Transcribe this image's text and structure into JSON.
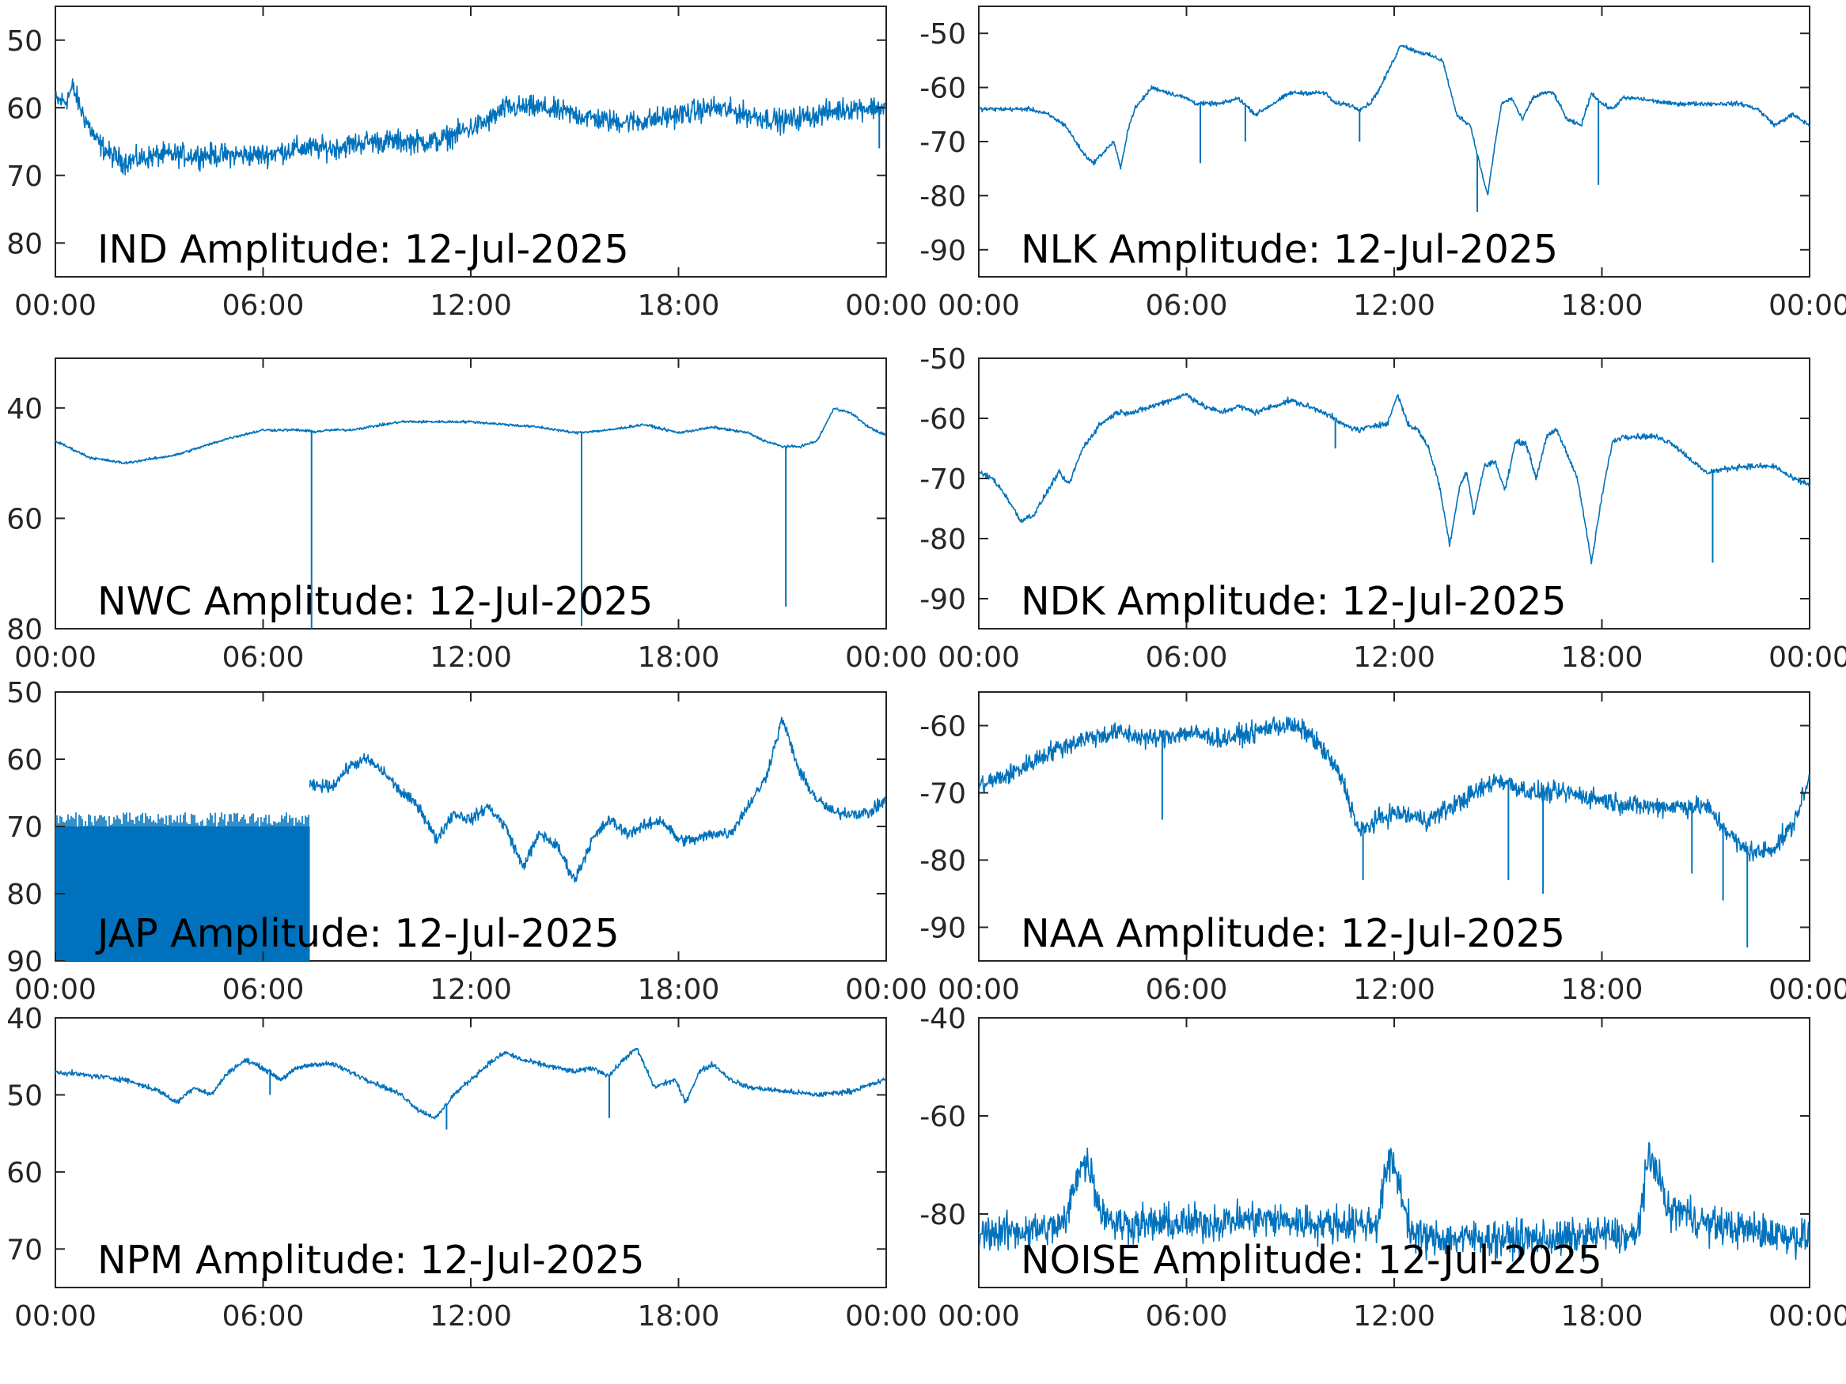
{
  "figure": {
    "x_tick_labels": [
      "00:00",
      "06:00",
      "12:00",
      "18:00",
      "00:00"
    ],
    "trace_color": "#0072BD"
  },
  "chart_data": [
    {
      "type": "line",
      "title": "IND Amplitude: 12-Jul-2025",
      "xlabel": "",
      "ylabel": "",
      "xlim": [
        0,
        24
      ],
      "ylim": [
        -85,
        -45
      ],
      "y_ticks": [
        -50,
        -60,
        -70,
        -80
      ],
      "y_tick_labels": [
        "50",
        "60",
        "70",
        "80"
      ],
      "noise": 2.5,
      "series": [
        {
          "x": [
            0,
            0.3,
            0.5,
            0.8,
            1.2,
            1.6,
            2,
            3,
            4,
            5,
            6,
            7,
            8,
            9,
            10,
            11,
            12,
            12.5,
            13,
            13.5,
            14,
            15,
            16,
            17,
            18,
            19,
            20,
            21,
            22,
            23,
            24
          ],
          "y": [
            -59,
            -59,
            -57,
            -61,
            -65,
            -67,
            -68,
            -67,
            -67,
            -67,
            -67,
            -66,
            -66,
            -65,
            -65,
            -65,
            -63,
            -62,
            -60,
            -60,
            -60,
            -61,
            -62,
            -62,
            -61,
            -60,
            -61,
            -62,
            -61,
            -60,
            -60
          ]
        }
      ],
      "spikes": [
        {
          "x": 23.8,
          "y": -66
        }
      ]
    },
    {
      "type": "line",
      "title": "NLK Amplitude: 12-Jul-2025",
      "xlabel": "",
      "ylabel": "",
      "xlim": [
        0,
        24
      ],
      "ylim": [
        -95,
        -45
      ],
      "y_ticks": [
        -50,
        -60,
        -70,
        -80,
        -90
      ],
      "y_tick_labels": [
        "-50",
        "-60",
        "-70",
        "-80",
        "-90"
      ],
      "noise": 0.6,
      "series": [
        {
          "x": [
            0,
            1,
            1.5,
            2,
            2.5,
            3,
            3.3,
            3.6,
            3.9,
            4.1,
            4.3,
            4.5,
            5,
            5.5,
            6,
            6.3,
            6.6,
            7,
            7.5,
            8,
            8.5,
            9,
            9.5,
            10,
            10.3,
            10.6,
            11,
            11.3,
            11.6,
            11.9,
            12.2,
            12.5,
            13,
            13.4,
            13.8,
            14.2,
            14.5,
            14.7,
            14.9,
            15.1,
            15.4,
            15.7,
            16,
            16.3,
            16.6,
            17,
            17.4,
            17.7,
            18,
            18.3,
            18.6,
            19,
            20,
            21,
            22,
            22.5,
            23,
            23.5,
            24
          ],
          "y": [
            -64,
            -64,
            -64,
            -65,
            -67,
            -72,
            -74,
            -72,
            -70,
            -75,
            -68,
            -64,
            -60,
            -61,
            -62,
            -63,
            -63,
            -63,
            -62,
            -65,
            -63,
            -61,
            -61,
            -61,
            -63,
            -63,
            -64,
            -63,
            -60,
            -56,
            -52,
            -53,
            -54,
            -55,
            -65,
            -67,
            -75,
            -80,
            -71,
            -63,
            -62,
            -66,
            -62,
            -61,
            -61,
            -66,
            -67,
            -61,
            -63,
            -64,
            -62,
            -62,
            -63,
            -63,
            -63,
            -64,
            -67,
            -65,
            -67
          ]
        }
      ],
      "spikes": [
        {
          "x": 6.4,
          "y": -74
        },
        {
          "x": 7.7,
          "y": -70
        },
        {
          "x": 11.0,
          "y": -70
        },
        {
          "x": 14.4,
          "y": -83
        },
        {
          "x": 17.9,
          "y": -78
        }
      ]
    },
    {
      "type": "line",
      "title": "NWC Amplitude: 12-Jul-2025",
      "xlabel": "",
      "ylabel": "",
      "xlim": [
        0,
        24
      ],
      "ylim": [
        -80,
        -31
      ],
      "y_ticks": [
        -40,
        -60,
        -80
      ],
      "y_tick_labels": [
        "40",
        "60",
        "80"
      ],
      "noise": 0.35,
      "series": [
        {
          "x": [
            0,
            0.5,
            1,
            1.5,
            2,
            3,
            3.5,
            4,
            5,
            6,
            7,
            7.5,
            8,
            8.5,
            9,
            10,
            11,
            12,
            13,
            14,
            15,
            16,
            17,
            18,
            19,
            20,
            20.5,
            21,
            21.5,
            22,
            22.5,
            23,
            23.5,
            24
          ],
          "y": [
            -46,
            -47.5,
            -49,
            -49.5,
            -50,
            -49,
            -48.5,
            -47.5,
            -45.5,
            -44,
            -44,
            -44.3,
            -44,
            -44,
            -43.5,
            -42.5,
            -42.5,
            -42.5,
            -43,
            -43.5,
            -44.5,
            -44,
            -43,
            -44.5,
            -43.5,
            -44.5,
            -46,
            -47,
            -47,
            -46,
            -40,
            -41,
            -43.5,
            -45
          ]
        }
      ],
      "spikes": [
        {
          "x": 7.4,
          "y": -80
        },
        {
          "x": 15.2,
          "y": -79.5
        },
        {
          "x": 21.1,
          "y": -76
        }
      ]
    },
    {
      "type": "line",
      "title": "NDK Amplitude: 12-Jul-2025",
      "xlabel": "",
      "ylabel": "",
      "xlim": [
        0,
        24
      ],
      "ylim": [
        -95,
        -50
      ],
      "y_ticks": [
        -50,
        -60,
        -70,
        -80,
        -90
      ],
      "y_tick_labels": [
        "-50",
        "-60",
        "-70",
        "-80",
        "-90"
      ],
      "noise": 0.7,
      "series": [
        {
          "x": [
            0,
            0.4,
            0.8,
            1.2,
            1.6,
            2,
            2.3,
            2.6,
            3,
            3.5,
            4,
            4.5,
            5,
            6,
            6.5,
            7,
            7.5,
            8,
            8.5,
            9,
            9.5,
            10,
            10.5,
            11,
            11.5,
            11.8,
            12.1,
            12.4,
            12.7,
            13,
            13.3,
            13.6,
            13.9,
            14.1,
            14.3,
            14.6,
            14.9,
            15.2,
            15.5,
            15.8,
            16.1,
            16.4,
            16.7,
            17,
            17.3,
            17.7,
            18,
            18.3,
            18.6,
            19,
            19.5,
            20,
            21,
            22,
            22.5,
            23,
            23.5,
            24
          ],
          "y": [
            -69,
            -70,
            -73,
            -77,
            -76,
            -72,
            -69,
            -71,
            -65,
            -61,
            -59,
            -59,
            -58,
            -56,
            -58,
            -59,
            -58,
            -59,
            -58,
            -57,
            -58,
            -59,
            -61,
            -62,
            -61,
            -61,
            -56,
            -61,
            -62,
            -65,
            -71,
            -81,
            -71,
            -69,
            -76,
            -68,
            -67,
            -72,
            -64,
            -64,
            -70,
            -63,
            -62,
            -66,
            -70,
            -84,
            -73,
            -64,
            -63,
            -63,
            -63,
            -64,
            -69,
            -68,
            -68,
            -68,
            -70,
            -71
          ]
        }
      ],
      "spikes": [
        {
          "x": 21.2,
          "y": -84
        },
        {
          "x": 10.3,
          "y": -65
        }
      ]
    },
    {
      "type": "line",
      "title": "JAP Amplitude: 12-Jul-2025",
      "xlabel": "",
      "ylabel": "",
      "xlim": [
        0,
        24
      ],
      "ylim": [
        -90,
        -50
      ],
      "y_ticks": [
        -50,
        -60,
        -70,
        -80,
        -90
      ],
      "y_tick_labels": [
        "50",
        "60",
        "70",
        "80",
        "90"
      ],
      "noise": 1.3,
      "band": {
        "x": [
          0,
          7.35
        ],
        "y": [
          -90,
          -70
        ]
      },
      "series": [
        {
          "x": [
            7.35,
            7.6,
            8,
            8.5,
            9,
            9.5,
            10,
            10.5,
            11,
            11.5,
            12,
            12.5,
            13,
            13.5,
            14,
            14.5,
            15,
            15.5,
            16,
            16.5,
            17,
            17.5,
            18,
            18.5,
            19,
            19.5,
            20,
            20.5,
            21,
            21.5,
            22,
            22.5,
            23,
            23.5,
            24
          ],
          "y": [
            -64,
            -64,
            -64,
            -61,
            -60,
            -62,
            -65,
            -67,
            -72,
            -68,
            -69,
            -67,
            -70,
            -76,
            -71,
            -73,
            -78,
            -72,
            -69,
            -71,
            -70,
            -69,
            -72,
            -72,
            -71,
            -71,
            -67,
            -63,
            -54,
            -62,
            -66,
            -68,
            -68,
            -68,
            -66
          ]
        }
      ],
      "spikes": []
    },
    {
      "type": "line",
      "title": "NAA Amplitude: 12-Jul-2025",
      "xlabel": "",
      "ylabel": "",
      "xlim": [
        0,
        24
      ],
      "ylim": [
        -95,
        -55
      ],
      "y_ticks": [
        -60,
        -70,
        -80,
        -90
      ],
      "y_tick_labels": [
        "-60",
        "-70",
        "-80",
        "-90"
      ],
      "noise": 2.2,
      "series": [
        {
          "x": [
            0,
            1,
            2,
            3,
            4,
            5,
            6,
            7,
            8,
            8.5,
            9,
            9.5,
            10,
            10.5,
            11,
            11.5,
            12,
            13,
            14,
            15,
            16,
            17,
            18,
            19,
            20,
            20.5,
            21,
            21.5,
            22,
            22.5,
            23,
            23.5,
            24
          ],
          "y": [
            -69,
            -67,
            -64,
            -62,
            -61,
            -62,
            -61,
            -62,
            -61,
            -60,
            -60,
            -61,
            -64,
            -68,
            -76,
            -74,
            -73,
            -74,
            -71,
            -68,
            -70,
            -70,
            -71,
            -72,
            -72,
            -72,
            -72,
            -75,
            -78,
            -79,
            -78,
            -75,
            -68
          ]
        }
      ],
      "spikes": [
        {
          "x": 5.3,
          "y": -74
        },
        {
          "x": 11.1,
          "y": -83
        },
        {
          "x": 15.3,
          "y": -83
        },
        {
          "x": 16.3,
          "y": -85
        },
        {
          "x": 20.6,
          "y": -82
        },
        {
          "x": 21.5,
          "y": -86
        },
        {
          "x": 22.2,
          "y": -93
        }
      ]
    },
    {
      "type": "line",
      "title": "NPM Amplitude: 12-Jul-2025",
      "xlabel": "",
      "ylabel": "",
      "xlim": [
        0,
        24
      ],
      "ylim": [
        -75,
        -40
      ],
      "y_ticks": [
        -40,
        -50,
        -60,
        -70
      ],
      "y_tick_labels": [
        "40",
        "50",
        "60",
        "70"
      ],
      "noise": 0.5,
      "series": [
        {
          "x": [
            0,
            1,
            2,
            3,
            3.5,
            4,
            4.5,
            5,
            5.5,
            6,
            6.5,
            7,
            7.5,
            8,
            8.5,
            9,
            9.5,
            10,
            10.5,
            11,
            11.5,
            12,
            12.5,
            13,
            13.5,
            14,
            15,
            15.5,
            16,
            16.5,
            16.8,
            17,
            17.3,
            17.6,
            17.9,
            18.2,
            18.6,
            19,
            19.5,
            20,
            21,
            22,
            23,
            24
          ],
          "y": [
            -47,
            -47.5,
            -48,
            -49.5,
            -51,
            -49,
            -50,
            -47,
            -45.5,
            -46.5,
            -48,
            -46.5,
            -46,
            -46,
            -47,
            -48,
            -49,
            -50,
            -52,
            -53,
            -50,
            -48,
            -46,
            -44.5,
            -45.5,
            -46,
            -47,
            -46.5,
            -47.5,
            -45,
            -44,
            -46,
            -49,
            -48.5,
            -48,
            -51,
            -47,
            -46,
            -48,
            -49,
            -49.5,
            -50,
            -49.5,
            -48
          ]
        }
      ],
      "spikes": [
        {
          "x": 6.2,
          "y": -50
        },
        {
          "x": 11.3,
          "y": -54.5
        },
        {
          "x": 16.0,
          "y": -53
        }
      ]
    },
    {
      "type": "line",
      "title": "NOISE Amplitude: 12-Jul-2025",
      "xlabel": "",
      "ylabel": "",
      "xlim": [
        0,
        24
      ],
      "ylim": [
        -95,
        -40
      ],
      "y_ticks": [
        -40,
        -60,
        -80
      ],
      "y_tick_labels": [
        "-40",
        "-60",
        "-80"
      ],
      "noise": 5.5,
      "series": [
        {
          "x": [
            0,
            2,
            2.5,
            2.9,
            3.2,
            3.5,
            4,
            6,
            8,
            10,
            11.5,
            11.8,
            12,
            12.5,
            13,
            15,
            17,
            18,
            19,
            19.3,
            19.6,
            19.9,
            20.2,
            21,
            22,
            23,
            24
          ],
          "y": [
            -84,
            -83,
            -82,
            -70,
            -70,
            -79,
            -82,
            -82,
            -81,
            -82,
            -82,
            -70,
            -70,
            -84,
            -85,
            -85,
            -85,
            -84,
            -85,
            -70,
            -70,
            -80,
            -79,
            -82,
            -83,
            -84,
            -85
          ]
        }
      ],
      "spikes": []
    }
  ]
}
